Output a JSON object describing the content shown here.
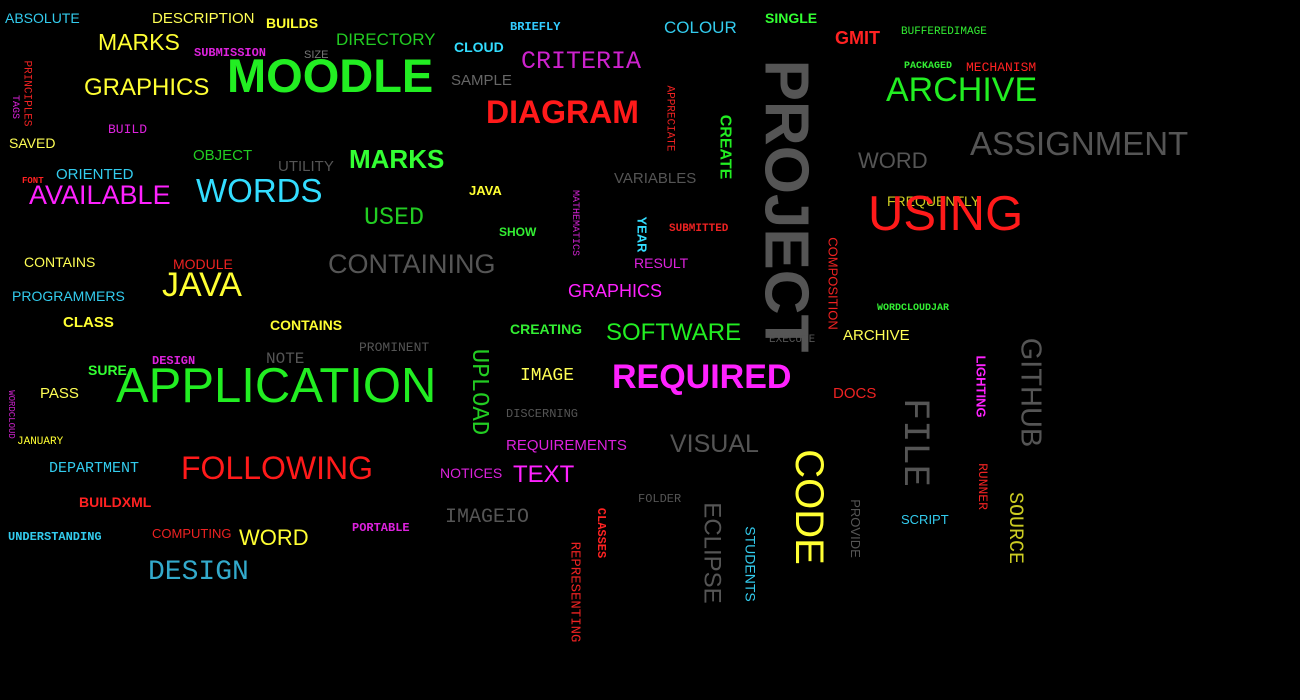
{
  "colors": {
    "background": "#000000",
    "yellow": "#ffff33",
    "green": "#22ee22",
    "lime": "#33ff33",
    "cyan": "#33ddff",
    "magenta": "#ff22ff",
    "red": "#ff1a1a",
    "gray": "#666666"
  },
  "words": [
    {
      "text": "ABSOLUTE",
      "color": "#33ccee"
    },
    {
      "text": "DESCRIPTION",
      "color": "#ffff55"
    },
    {
      "text": "BUILDS",
      "color": "#ffff33"
    },
    {
      "text": "BRIEFLY",
      "color": "#33ccff"
    },
    {
      "text": "COLOUR",
      "color": "#33ccee"
    },
    {
      "text": "SINGLE",
      "color": "#33ff33"
    },
    {
      "text": "GMIT",
      "color": "#ff2222"
    },
    {
      "text": "BUFFEREDIMAGE",
      "color": "#33ee33"
    },
    {
      "text": "MARKS",
      "color": "#ffff33"
    },
    {
      "text": "SUBMISSION",
      "color": "#dd22dd"
    },
    {
      "text": "SIZE",
      "color": "#777777"
    },
    {
      "text": "DIRECTORY",
      "color": "#22cc22"
    },
    {
      "text": "CLOUD",
      "color": "#33ddff"
    },
    {
      "text": "MOODLE",
      "color": "#22ee22"
    },
    {
      "text": "SAMPLE",
      "color": "#666666"
    },
    {
      "text": "CRITERIA",
      "color": "#cc22cc"
    },
    {
      "text": "PACKAGED",
      "color": "#33ee33"
    },
    {
      "text": "MECHANISM",
      "color": "#ff2222"
    },
    {
      "text": "ARCHIVE",
      "color": "#22ee22"
    },
    {
      "text": "GRAPHICS",
      "color": "#ffff33"
    },
    {
      "text": "PRINCIPLES",
      "color": "#ee2222"
    },
    {
      "text": "TAGS",
      "color": "#dd22dd"
    },
    {
      "text": "DIAGRAM",
      "color": "#ff1a1a"
    },
    {
      "text": "APPRECIATE",
      "color": "#ee2222"
    },
    {
      "text": "CREATE",
      "color": "#22ee22"
    },
    {
      "text": "PROJECT",
      "color": "#555555"
    },
    {
      "text": "ASSIGNMENT",
      "color": "#555555"
    },
    {
      "text": "BUILD",
      "color": "#dd22dd"
    },
    {
      "text": "SAVED",
      "color": "#ffff55"
    },
    {
      "text": "OBJECT",
      "color": "#22cc22"
    },
    {
      "text": "UTILITY",
      "color": "#555555"
    },
    {
      "text": "MARKS",
      "color": "#33ff33"
    },
    {
      "text": "WORD",
      "color": "#555555"
    },
    {
      "text": "ORIENTED",
      "color": "#33ccee"
    },
    {
      "text": "FONT",
      "color": "#ff2222"
    },
    {
      "text": "AVAILABLE",
      "color": "#ff22ff"
    },
    {
      "text": "WORDS",
      "color": "#33ddff"
    },
    {
      "text": "JAVA",
      "color": "#ffff33"
    },
    {
      "text": "VARIABLES",
      "color": "#555555"
    },
    {
      "text": "MATHEMATICS",
      "color": "#cc22cc"
    },
    {
      "text": "FREQUENTLY",
      "color": "#cccc22"
    },
    {
      "text": "USING",
      "color": "#ff1a1a"
    },
    {
      "text": "USED",
      "color": "#22cc22"
    },
    {
      "text": "SHOW",
      "color": "#33ee33"
    },
    {
      "text": "YEAR",
      "color": "#33ddff"
    },
    {
      "text": "SUBMITTED",
      "color": "#ee2222"
    },
    {
      "text": "CONTAINS",
      "color": "#ffff55"
    },
    {
      "text": "MODULE",
      "color": "#ee2222"
    },
    {
      "text": "CONTAINING",
      "color": "#555555"
    },
    {
      "text": "RESULT",
      "color": "#dd22dd"
    },
    {
      "text": "COMPOSITION",
      "color": "#ee2222"
    },
    {
      "text": "JAVA",
      "color": "#ffff33"
    },
    {
      "text": "PROGRAMMERS",
      "color": "#33ccee"
    },
    {
      "text": "GRAPHICS",
      "color": "#ff22ff"
    },
    {
      "text": "WORDCLOUDJAR",
      "color": "#33ee33"
    },
    {
      "text": "CLASS",
      "color": "#ffff33"
    },
    {
      "text": "CONTAINS",
      "color": "#ffff33"
    },
    {
      "text": "CREATING",
      "color": "#33ee33"
    },
    {
      "text": "SOFTWARE",
      "color": "#22ee22"
    },
    {
      "text": "ARCHIVE",
      "color": "#ffff55"
    },
    {
      "text": "EXECUTE",
      "color": "#555555"
    },
    {
      "text": "GITHUB",
      "color": "#555555"
    },
    {
      "text": "DESIGN",
      "color": "#dd22dd"
    },
    {
      "text": "NOTE",
      "color": "#555555"
    },
    {
      "text": "PROMINENT",
      "color": "#555555"
    },
    {
      "text": "LIGHTING",
      "color": "#ff22ff"
    },
    {
      "text": "SURE",
      "color": "#33ff33"
    },
    {
      "text": "APPLICATION",
      "color": "#22ee22"
    },
    {
      "text": "UPLOAD",
      "color": "#22cc22"
    },
    {
      "text": "IMAGE",
      "color": "#ffff55"
    },
    {
      "text": "REQUIRED",
      "color": "#ff22ff"
    },
    {
      "text": "DOCS",
      "color": "#ee2222"
    },
    {
      "text": "FILE",
      "color": "#555555"
    },
    {
      "text": "PASS",
      "color": "#ffff55"
    },
    {
      "text": "WORDCLOUD",
      "color": "#cc22cc"
    },
    {
      "text": "DISCERNING",
      "color": "#555555"
    },
    {
      "text": "JANUARY",
      "color": "#ffff33"
    },
    {
      "text": "REQUIREMENTS",
      "color": "#dd22dd"
    },
    {
      "text": "VISUAL",
      "color": "#555555"
    },
    {
      "text": "CODE",
      "color": "#ffff33"
    },
    {
      "text": "RUNNER",
      "color": "#ee2222"
    },
    {
      "text": "DEPARTMENT",
      "color": "#33ccee"
    },
    {
      "text": "FOLLOWING",
      "color": "#ff1a1a"
    },
    {
      "text": "NOTICES",
      "color": "#dd22dd"
    },
    {
      "text": "TEXT",
      "color": "#ff22ff"
    },
    {
      "text": "BUILDXML",
      "color": "#ff2222"
    },
    {
      "text": "FOLDER",
      "color": "#555555"
    },
    {
      "text": "SOURCE",
      "color": "#cccc22"
    },
    {
      "text": "PROVIDE",
      "color": "#555555"
    },
    {
      "text": "SCRIPT",
      "color": "#33ccee"
    },
    {
      "text": "IMAGEIO",
      "color": "#555555"
    },
    {
      "text": "CLASSES",
      "color": "#ff2222"
    },
    {
      "text": "ECLIPSE",
      "color": "#555555"
    },
    {
      "text": "STUDENTS",
      "color": "#33ccee"
    },
    {
      "text": "UNDERSTANDING",
      "color": "#33ccee"
    },
    {
      "text": "COMPUTING",
      "color": "#ee2222"
    },
    {
      "text": "WORD",
      "color": "#ffff33"
    },
    {
      "text": "PORTABLE",
      "color": "#dd22dd"
    },
    {
      "text": "DESIGN",
      "color": "#33aacc"
    },
    {
      "text": "REPRESENTING",
      "color": "#ee2222"
    }
  ]
}
